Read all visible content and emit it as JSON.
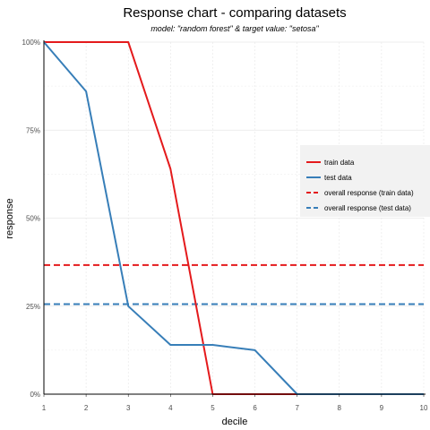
{
  "chart_data": {
    "type": "line",
    "title": "Response chart - comparing datasets",
    "subtitle": "model: \"random forest\"  &  target value: \"setosa\"",
    "xlabel": "decile",
    "ylabel": "response",
    "x": [
      1,
      2,
      3,
      4,
      5,
      6,
      7,
      8,
      9,
      10
    ],
    "xlim": [
      1,
      10
    ],
    "ylim": [
      0,
      1
    ],
    "x_ticks": [
      "1",
      "2",
      "3",
      "4",
      "5",
      "6",
      "7",
      "8",
      "9",
      "10"
    ],
    "y_ticks": [
      {
        "value": 0,
        "label": "0%"
      },
      {
        "value": 0.25,
        "label": "25%"
      },
      {
        "value": 0.5,
        "label": "50%"
      },
      {
        "value": 0.75,
        "label": "75%"
      },
      {
        "value": 1,
        "label": "100%"
      }
    ],
    "series": [
      {
        "name": "train data",
        "color": "#e41a1c",
        "style": "solid",
        "values": [
          1.0,
          1.0,
          1.0,
          0.64,
          0.0,
          0.0,
          0.0,
          null,
          null,
          null
        ]
      },
      {
        "name": "test data",
        "color": "#377eb8",
        "style": "solid",
        "values": [
          1.0,
          0.86,
          0.25,
          0.14,
          0.14,
          0.125,
          0.0,
          0.0,
          0.0,
          0.0
        ]
      },
      {
        "name": "overall response (train data)",
        "color": "#e41a1c",
        "style": "dashed",
        "values": [
          0.3667,
          0.3667,
          0.3667,
          0.3667,
          0.3667,
          0.3667,
          0.3667,
          0.3667,
          0.3667,
          0.3667
        ]
      },
      {
        "name": "overall response (test data)",
        "color": "#377eb8",
        "style": "dashed",
        "values": [
          0.2556,
          0.2556,
          0.2556,
          0.2556,
          0.2556,
          0.2556,
          0.2556,
          0.2556,
          0.2556,
          0.2556
        ]
      }
    ],
    "grid": true,
    "legend_position": "right"
  }
}
